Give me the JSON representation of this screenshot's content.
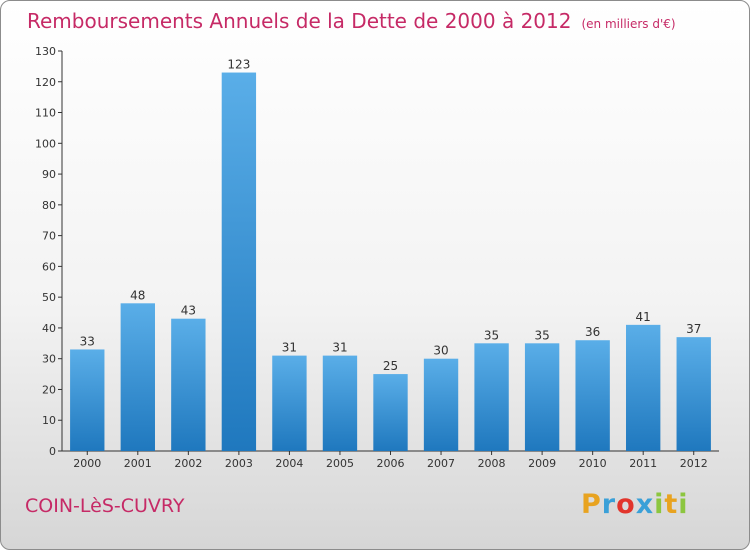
{
  "title": "Remboursements Annuels de la Dette de 2000 à 2012",
  "unit": "(en milliers d'€)",
  "commune": "COIN-LèS-CUVRY",
  "brand": {
    "letters": [
      "P",
      "r",
      "o",
      "x",
      "i",
      "t",
      "i"
    ],
    "colors": [
      "#e8a320",
      "#3aa0d8",
      "#e2352c",
      "#3aa0d8",
      "#8cc63f",
      "#e8a320",
      "#8cc63f"
    ]
  },
  "colors": {
    "bar_light": "#5aaee8",
    "bar_dark": "#1f78be",
    "title": "#c62a66",
    "axis": "#333333",
    "grid": "#cfcfcf"
  },
  "chart_data": {
    "type": "bar",
    "title": "Remboursements Annuels de la Dette de 2000 à 2012",
    "categories": [
      "2000",
      "2001",
      "2002",
      "2003",
      "2004",
      "2005",
      "2006",
      "2007",
      "2008",
      "2009",
      "2010",
      "2011",
      "2012"
    ],
    "values": [
      33,
      48,
      43,
      123,
      31,
      31,
      25,
      30,
      35,
      35,
      36,
      41,
      37
    ],
    "ylim": [
      0,
      130
    ],
    "yticks": [
      0,
      10,
      20,
      30,
      40,
      50,
      60,
      70,
      80,
      90,
      100,
      110,
      120,
      130
    ],
    "grid": false,
    "data_labels": true
  }
}
